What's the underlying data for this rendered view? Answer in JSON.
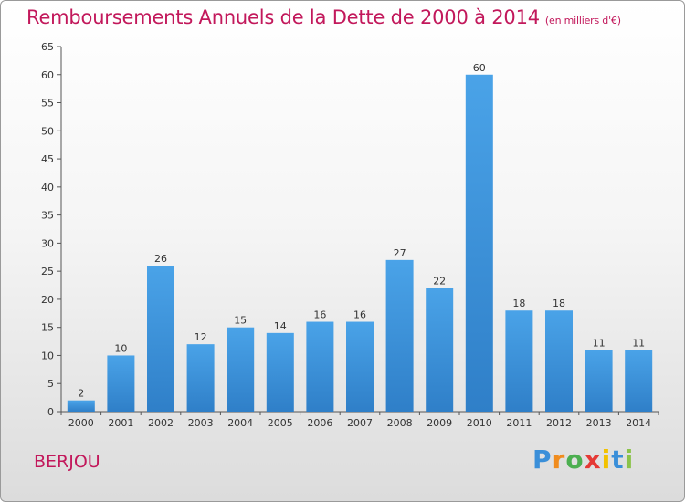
{
  "chart_data": {
    "type": "bar",
    "title": "Remboursements Annuels de la Dette de 2000 à 2014",
    "unit": "(en milliers d'€)",
    "categories": [
      "2000",
      "2001",
      "2002",
      "2003",
      "2004",
      "2005",
      "2006",
      "2007",
      "2008",
      "2009",
      "2010",
      "2011",
      "2012",
      "2013",
      "2014"
    ],
    "values": [
      2,
      10,
      26,
      12,
      15,
      14,
      16,
      16,
      27,
      22,
      60,
      18,
      18,
      11,
      11
    ],
    "ylim": [
      0,
      65
    ],
    "yticks": [
      0,
      5,
      10,
      15,
      20,
      25,
      30,
      35,
      40,
      45,
      50,
      55,
      60,
      65
    ],
    "grid": false,
    "bar_color": "#4aa3e8",
    "bar_color_dark": "#2f7fc8",
    "title_color": "#c2185b"
  },
  "commune": "BERJOU",
  "logo": {
    "letters": [
      "P",
      "r",
      "o",
      "x",
      "i",
      "t",
      "i"
    ]
  }
}
